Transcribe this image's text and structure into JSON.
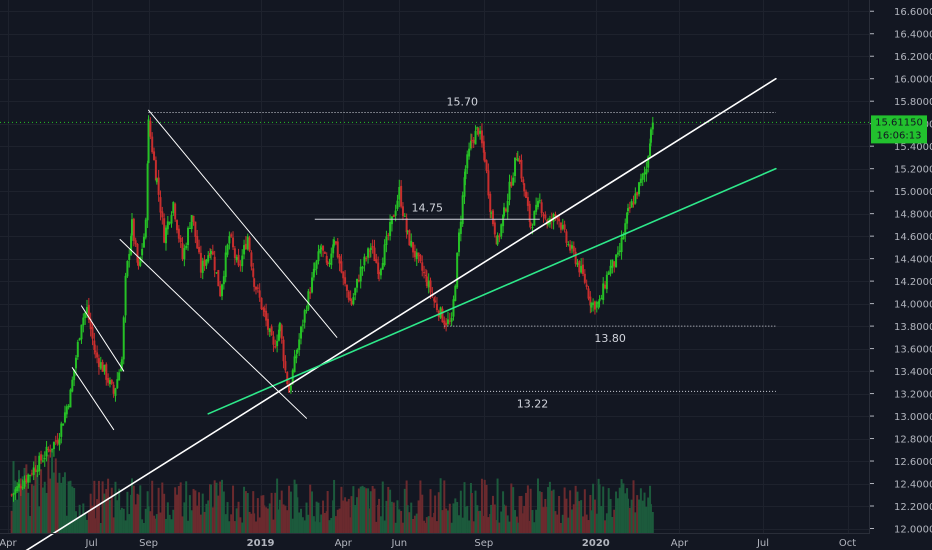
{
  "chart_data": {
    "type": "candlestick",
    "y_axis": {
      "range": [
        11.96,
        16.7
      ],
      "ticks": [
        "12.00000",
        "12.20000",
        "12.40000",
        "12.60000",
        "12.80000",
        "13.00000",
        "13.20000",
        "13.40000",
        "13.60000",
        "13.80000",
        "14.00000",
        "14.20000",
        "14.40000",
        "14.60000",
        "14.80000",
        "15.00000",
        "15.20000",
        "15.40000",
        "15.60000",
        "15.80000",
        "16.00000",
        "16.20000",
        "16.40000",
        "16.60000"
      ],
      "tick_values": [
        12.0,
        12.2,
        12.4,
        12.6,
        12.8,
        13.0,
        13.2,
        13.4,
        13.6,
        13.8,
        14.0,
        14.2,
        14.4,
        14.6,
        14.8,
        15.0,
        15.2,
        15.4,
        15.6,
        15.8,
        16.0,
        16.2,
        16.4,
        16.6
      ]
    },
    "x_axis": {
      "range": [
        "2018-04-01",
        "2020-11-01"
      ],
      "ticks": [
        {
          "label": "Apr",
          "date": "2018-04-01"
        },
        {
          "label": "Jul",
          "date": "2018-07-01"
        },
        {
          "label": "Sep",
          "date": "2018-09-01"
        },
        {
          "label": "2019",
          "date": "2019-01-01"
        },
        {
          "label": "Apr",
          "date": "2019-04-01"
        },
        {
          "label": "Jun",
          "date": "2019-06-01"
        },
        {
          "label": "Sep",
          "date": "2019-09-01"
        },
        {
          "label": "2020",
          "date": "2020-01-01"
        },
        {
          "label": "Apr",
          "date": "2020-04-01"
        },
        {
          "label": "Jul",
          "date": "2020-07-01"
        },
        {
          "label": "Oct",
          "date": "2020-10-01"
        }
      ]
    },
    "price_path": [
      [
        "2018-04-05",
        12.3
      ],
      [
        "2018-05-01",
        12.55
      ],
      [
        "2018-05-25",
        12.8
      ],
      [
        "2018-06-08",
        13.2
      ],
      [
        "2018-06-20",
        13.85
      ],
      [
        "2018-06-26",
        13.95
      ],
      [
        "2018-07-05",
        13.55
      ],
      [
        "2018-07-15",
        13.4
      ],
      [
        "2018-07-25",
        13.2
      ],
      [
        "2018-08-03",
        13.5
      ],
      [
        "2018-08-07",
        14.2
      ],
      [
        "2018-08-14",
        14.7
      ],
      [
        "2018-08-21",
        14.3
      ],
      [
        "2018-08-29",
        14.7
      ],
      [
        "2018-09-01",
        15.6
      ],
      [
        "2018-09-10",
        15.1
      ],
      [
        "2018-09-18",
        14.6
      ],
      [
        "2018-09-28",
        14.9
      ],
      [
        "2018-10-08",
        14.4
      ],
      [
        "2018-10-18",
        14.8
      ],
      [
        "2018-10-28",
        14.3
      ],
      [
        "2018-11-08",
        14.5
      ],
      [
        "2018-11-18",
        14.1
      ],
      [
        "2018-11-28",
        14.6
      ],
      [
        "2018-12-08",
        14.3
      ],
      [
        "2018-12-18",
        14.6
      ],
      [
        "2018-12-25",
        14.2
      ],
      [
        "2019-01-05",
        13.9
      ],
      [
        "2019-01-15",
        13.6
      ],
      [
        "2019-01-22",
        13.8
      ],
      [
        "2019-01-28",
        13.4
      ],
      [
        "2019-02-01",
        13.22
      ],
      [
        "2019-02-10",
        13.6
      ],
      [
        "2019-02-20",
        14.0
      ],
      [
        "2019-03-01",
        14.3
      ],
      [
        "2019-03-08",
        14.5
      ],
      [
        "2019-03-15",
        14.3
      ],
      [
        "2019-03-22",
        14.6
      ],
      [
        "2019-04-01",
        14.2
      ],
      [
        "2019-04-10",
        14.0
      ],
      [
        "2019-04-20",
        14.3
      ],
      [
        "2019-05-01",
        14.5
      ],
      [
        "2019-05-10",
        14.3
      ],
      [
        "2019-05-20",
        14.6
      ],
      [
        "2019-06-01",
        15.0
      ],
      [
        "2019-06-10",
        14.6
      ],
      [
        "2019-06-20",
        14.4
      ],
      [
        "2019-07-01",
        14.2
      ],
      [
        "2019-07-10",
        14.0
      ],
      [
        "2019-07-20",
        13.85
      ],
      [
        "2019-07-28",
        13.82
      ],
      [
        "2019-08-05",
        14.6
      ],
      [
        "2019-08-12",
        15.2
      ],
      [
        "2019-08-19",
        15.45
      ],
      [
        "2019-08-26",
        15.55
      ],
      [
        "2019-09-02",
        15.3
      ],
      [
        "2019-09-09",
        14.8
      ],
      [
        "2019-09-16",
        14.55
      ],
      [
        "2019-09-23",
        14.8
      ],
      [
        "2019-10-01",
        15.1
      ],
      [
        "2019-10-08",
        15.35
      ],
      [
        "2019-10-15",
        15.0
      ],
      [
        "2019-10-22",
        14.7
      ],
      [
        "2019-11-01",
        14.9
      ],
      [
        "2019-11-10",
        14.7
      ],
      [
        "2019-11-20",
        14.8
      ],
      [
        "2019-11-30",
        14.55
      ],
      [
        "2019-12-10",
        14.4
      ],
      [
        "2019-12-20",
        14.2
      ],
      [
        "2019-12-27",
        14.0
      ],
      [
        "2020-01-05",
        14.0
      ],
      [
        "2020-01-15",
        14.3
      ],
      [
        "2020-01-25",
        14.4
      ],
      [
        "2020-02-05",
        14.8
      ],
      [
        "2020-02-15",
        15.0
      ],
      [
        "2020-02-25",
        15.2
      ],
      [
        "2020-03-01",
        15.55
      ],
      [
        "2020-03-03",
        15.61
      ]
    ],
    "volume_label": "",
    "series": [
      {
        "name": "",
        "color_up": "#26c126",
        "color_down": "#c82e2e"
      }
    ],
    "annotations": [
      {
        "text": "15.70",
        "level": 15.7,
        "from": "2018-09-01",
        "to": "2020-07-15"
      },
      {
        "text": "14.75",
        "level": 14.75,
        "from": "2019-03-01",
        "to": "2019-11-01"
      },
      {
        "text": "13.80",
        "level": 13.8,
        "from": "2019-07-20",
        "to": "2020-07-15"
      },
      {
        "text": "13.22",
        "level": 13.22,
        "from": "2019-02-01",
        "to": "2020-07-15"
      }
    ],
    "trendlines": [
      {
        "color": "#ffffff",
        "from": [
          "2018-04-20",
          11.8
        ],
        "to": [
          "2020-07-15",
          16.0
        ]
      },
      {
        "color": "#2ee88a",
        "from": [
          "2018-11-05",
          13.02
        ],
        "to": [
          "2020-07-15",
          15.2
        ]
      },
      {
        "color": "#ffffff",
        "from": [
          "2018-06-20",
          13.98
        ],
        "to": [
          "2018-08-05",
          13.4
        ]
      },
      {
        "color": "#ffffff",
        "from": [
          "2018-06-10",
          13.43
        ],
        "to": [
          "2018-07-25",
          12.88
        ]
      },
      {
        "color": "#ffffff",
        "from": [
          "2018-09-01",
          15.72
        ],
        "to": [
          "2019-03-25",
          13.7
        ]
      },
      {
        "color": "#ffffff",
        "from": [
          "2018-08-01",
          14.57
        ],
        "to": [
          "2019-02-20",
          12.98
        ]
      }
    ],
    "last_price": {
      "price": "15.61150",
      "timer": "16:06:13",
      "value": 15.6115
    },
    "grid": true,
    "colors": {
      "background": "#131722",
      "up": "#26c126",
      "down": "#c82e2e",
      "last_price_bg": "#22c12e",
      "accent_line": "#2ee88a"
    }
  }
}
